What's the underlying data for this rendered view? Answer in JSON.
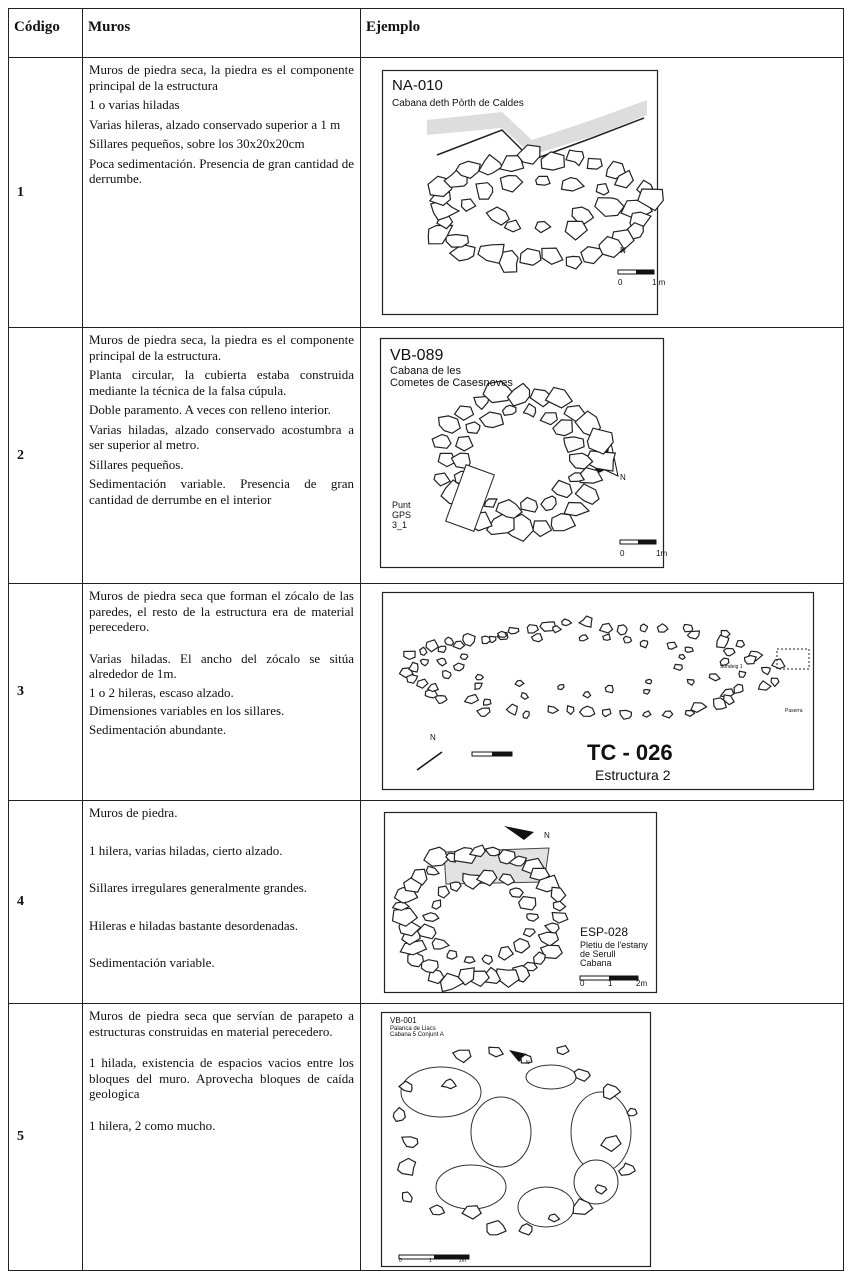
{
  "table": {
    "header": [
      "Código",
      "Muros",
      "Ejemplo"
    ],
    "rows": [
      {
        "code": "1",
        "muros": [
          "Muros de piedra seca, la piedra es el componente principal de la estructura",
          "1 o varias hiladas",
          "Varias hileras, alzado conservado superior a 1 m",
          "Sillares pequeños, sobre los 30x20x20cm",
          "Poca sedimentación. Presencia de gran cantidad de derrumbe."
        ],
        "figure": {
          "title": "NA-010",
          "lines": [
            "Cabana deth Pòrth de Caldes"
          ],
          "notes": [],
          "north": "N",
          "scale": [
            "0",
            "1 m"
          ]
        }
      },
      {
        "code": "2",
        "muros": [
          "Muros de piedra seca, la piedra es el componente principal de la estructura.",
          "Planta circular, la cubierta estaba construida mediante la técnica de la falsa cúpula.",
          "Doble paramento. A veces con relleno interior.",
          "Varias hiladas, alzado conservado acostumbra a ser superior al metro.",
          "Sillares pequeños.",
          "Sedimentación variable. Presencia de gran cantidad de derrumbe en el interior"
        ],
        "figure": {
          "title": "VB-089",
          "lines": [
            "Cabana de les",
            "Cometes de Casesnoves"
          ],
          "notes": [
            "Punt",
            "GPS",
            "3_1"
          ],
          "north": "N",
          "scale": [
            "0",
            "1m"
          ]
        }
      },
      {
        "code": "3",
        "muros": [
          "Muros de piedra seca que forman el zócalo de las paredes, el resto de la estructura era de material perecedero.",
          "Varias hiladas. El ancho del zócalo se sitúa alrededor de 1m.",
          "1 o 2 hileras, escaso alzado.",
          "Dimensiones variables en los sillares.",
          "Sedimentación abundante."
        ],
        "figure": {
          "title": "TC - 026",
          "lines": [
            "Estructura 2"
          ],
          "notes": [
            "Sondeig 1",
            "Paserra"
          ],
          "north": "N",
          "scale": []
        }
      },
      {
        "code": "4",
        "muros": [
          "Muros de piedra.",
          "1 hilera, varias hiladas, cierto alzado.",
          "Sillares irregulares generalmente grandes.",
          "Hileras e hiladas bastante desordenadas.",
          "Sedimentación variable."
        ],
        "figure": {
          "title": "ESP-028",
          "lines": [
            "Pletiu de l'estany",
            "de Serull",
            "Cabana"
          ],
          "notes": [],
          "north": "N",
          "scale": [
            "0",
            "1",
            "2m"
          ]
        }
      },
      {
        "code": "5",
        "muros": [
          "Muros de piedra seca que servían de parapeto a estructuras construidas en material perecedero.",
          "1 hilada, existencia de espacios vacios entre los bloques del muro. Aprovecha bloques de caída geologica",
          "1 hilera, 2 como mucho."
        ],
        "figure": {
          "title": "VB-001",
          "lines": [
            "Palanca de Llacs",
            "Cabana 5 Conjunt A"
          ],
          "notes": [],
          "north": "N",
          "scale": [
            "0",
            "1",
            "2m"
          ]
        }
      }
    ]
  }
}
